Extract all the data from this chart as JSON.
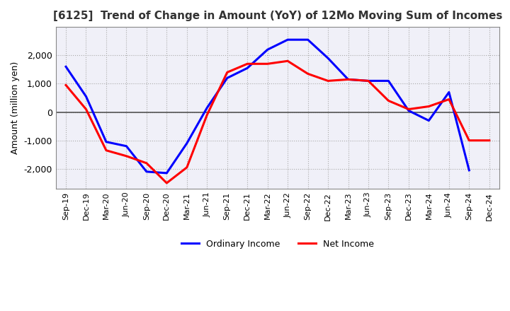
{
  "title": "[6125]  Trend of Change in Amount (YoY) of 12Mo Moving Sum of Incomes",
  "ylabel": "Amount (million yen)",
  "x_labels": [
    "Sep-19",
    "Dec-19",
    "Mar-20",
    "Jun-20",
    "Sep-20",
    "Dec-20",
    "Mar-21",
    "Jun-21",
    "Sep-21",
    "Dec-21",
    "Mar-22",
    "Jun-22",
    "Sep-22",
    "Dec-22",
    "Mar-23",
    "Jun-23",
    "Sep-23",
    "Dec-23",
    "Mar-24",
    "Jun-24",
    "Sep-24",
    "Dec-24"
  ],
  "ordinary_income": [
    1600,
    550,
    -1050,
    -1200,
    -2100,
    -2150,
    -1100,
    150,
    1200,
    1550,
    2200,
    2550,
    2550,
    1900,
    1150,
    1100,
    1100,
    50,
    -300,
    700,
    -2050,
    null
  ],
  "net_income": [
    950,
    100,
    -1350,
    -1550,
    -1800,
    -2500,
    -1950,
    -100,
    1400,
    1700,
    1700,
    1800,
    1350,
    1100,
    1150,
    1100,
    400,
    100,
    200,
    450,
    -1000,
    -1000
  ],
  "ordinary_income_color": "#0000ff",
  "net_income_color": "#ff0000",
  "ylim": [
    -2700,
    3000
  ],
  "yticks": [
    -2000,
    -1000,
    0,
    1000,
    2000
  ],
  "plot_bg_color": "#f0f0f8",
  "background_color": "#ffffff",
  "grid_color": "#aaaaaa",
  "zero_line_color": "#555555"
}
